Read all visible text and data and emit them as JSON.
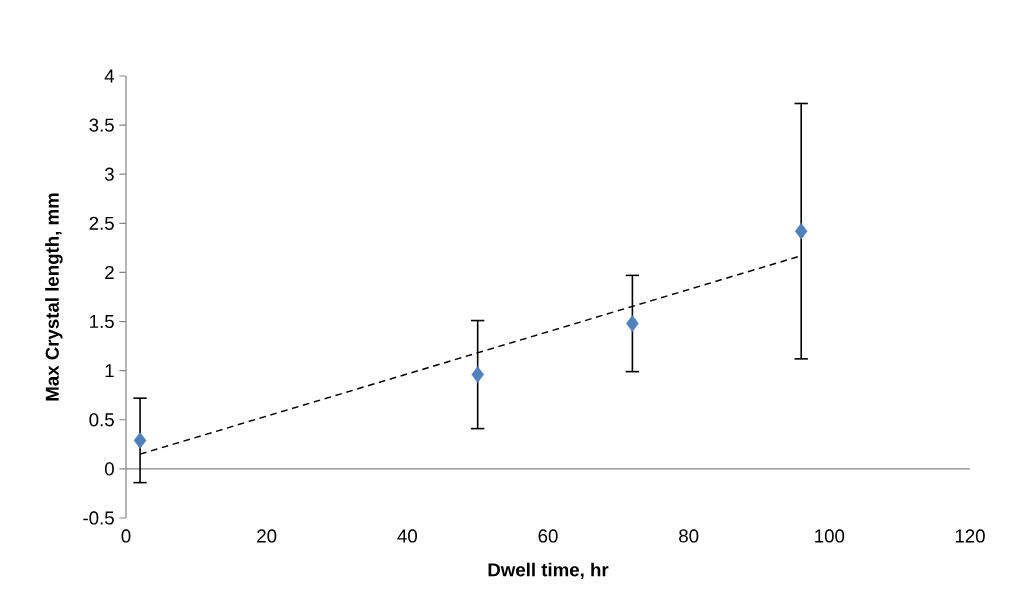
{
  "chart_data": {
    "type": "scatter",
    "xlabel": "Dwell time, hr",
    "ylabel": "Max Crystal length, mm",
    "xlim": [
      0,
      120
    ],
    "xticks": [
      0,
      20,
      40,
      60,
      80,
      100,
      120
    ],
    "ylim": [
      -0.5,
      4
    ],
    "yticks": [
      -0.5,
      0,
      0.5,
      1,
      1.5,
      2,
      2.5,
      3,
      3.5,
      4
    ],
    "series": [
      {
        "type": "scatter",
        "marker": "diamond",
        "color": "#4f81bd",
        "x": [
          2,
          50,
          72,
          96
        ],
        "values": [
          0.29,
          0.96,
          1.48,
          2.42
        ],
        "errors": [
          0.43,
          0.55,
          0.49,
          1.3
        ]
      },
      {
        "type": "line",
        "marker": "none",
        "line_style": "dashed",
        "color": "#000000",
        "x": [
          2,
          96
        ],
        "values": [
          0.15,
          2.17
        ]
      }
    ]
  }
}
